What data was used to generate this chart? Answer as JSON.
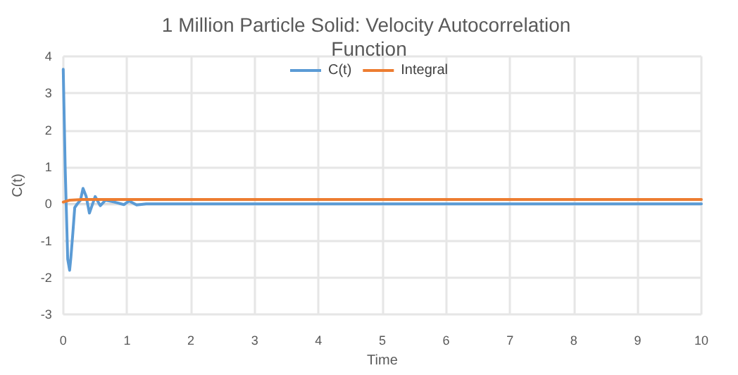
{
  "chart_data": {
    "type": "line",
    "title": "1 Million Particle Solid: Velocity Autocorrelation Function",
    "xlabel": "Time",
    "ylabel": "C(t)",
    "xlim": [
      0,
      10
    ],
    "xticks": [
      0,
      1,
      2,
      3,
      4,
      5,
      6,
      7,
      8,
      9,
      10
    ],
    "ylim": [
      -3,
      4
    ],
    "yticks": [
      -3,
      -2,
      -1,
      0,
      1,
      2,
      3,
      4
    ],
    "grid": true,
    "legend": "top",
    "marker": "none",
    "line_style": "solid",
    "series": [
      {
        "name": "C(t)",
        "color": "#5b9bd5",
        "x": [
          0,
          0.03,
          0.07,
          0.1,
          0.12,
          0.15,
          0.18,
          0.22,
          0.27,
          0.31,
          0.36,
          0.41,
          0.5,
          0.58,
          0.66,
          0.8,
          0.95,
          1.03,
          1.15,
          1.3,
          10
        ],
        "values": [
          3.65,
          1.0,
          -1.5,
          -1.8,
          -1.45,
          -0.8,
          -0.1,
          0.0,
          0.1,
          0.42,
          0.2,
          -0.25,
          0.2,
          -0.05,
          0.1,
          0.05,
          -0.02,
          0.08,
          -0.03,
          0.0,
          0.0
        ]
      },
      {
        "name": "Integral",
        "color": "#ed7d31",
        "x": [
          0,
          0.1,
          0.3,
          10
        ],
        "values": [
          0.05,
          0.1,
          0.12,
          0.12
        ]
      }
    ]
  }
}
